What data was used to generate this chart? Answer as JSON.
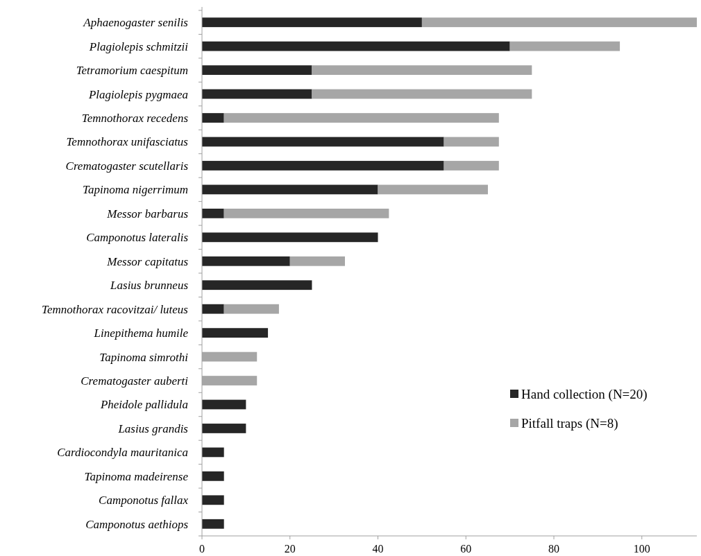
{
  "chart_data": {
    "type": "bar",
    "orientation": "horizontal",
    "stacked": true,
    "categories": [
      "Aphaenogaster senilis",
      "Plagiolepis schmitzii",
      "Tetramorium caespitum",
      "Plagiolepis pygmaea",
      "Temnothorax recedens",
      "Temnothorax unifasciatus",
      "Crematogaster scutellaris",
      "Tapinoma nigerrimum",
      "Messor barbarus",
      "Camponotus lateralis",
      "Messor capitatus",
      "Lasius brunneus",
      "Temnothorax racovitzai/ luteus",
      "Linepithema humile",
      "Tapinoma simrothi",
      "Crematogaster auberti",
      "Pheidole pallidula",
      "Lasius grandis",
      "Cardiocondyla mauritanica",
      "Tapinoma madeirense",
      "Camponotus fallax",
      "Camponotus aethiops"
    ],
    "series": [
      {
        "name": "Hand collection (N=20)",
        "color": "#262626",
        "values": [
          50,
          70,
          25,
          25,
          5,
          55,
          55,
          40,
          5,
          40,
          20,
          25,
          5,
          15,
          0,
          0,
          10,
          10,
          5,
          5,
          5,
          5
        ]
      },
      {
        "name": "Pitfall traps (N=8)",
        "color": "#a6a6a6",
        "values": [
          62.5,
          25,
          50,
          50,
          62.5,
          12.5,
          12.5,
          25,
          37.5,
          0,
          12.5,
          0,
          12.5,
          0,
          12.5,
          12.5,
          0,
          0,
          0,
          0,
          0,
          0
        ]
      }
    ],
    "xlim": [
      0,
      112.5
    ],
    "xticks": [
      0,
      20,
      40,
      60,
      80,
      100
    ],
    "grid": false,
    "legend": "right"
  }
}
